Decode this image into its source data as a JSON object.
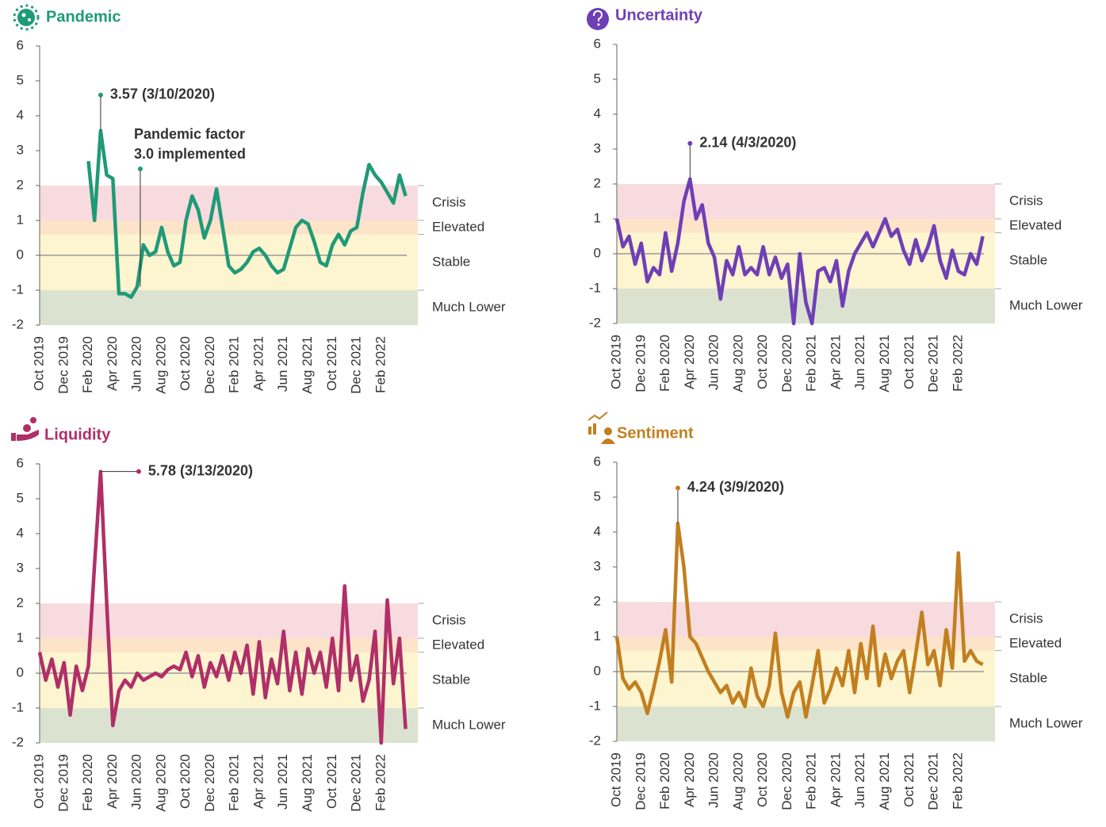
{
  "chart_data": [
    {
      "type": "line",
      "title": "Pandemic",
      "color": "#1f9a78",
      "categories": [
        "Oct 2019",
        null,
        null,
        null,
        "Dec 2019",
        null,
        null,
        null,
        "Feb 2020",
        null,
        null,
        null,
        "Apr 2020",
        null,
        null,
        null,
        "Jun 2020",
        null,
        null,
        null,
        "Aug 2020",
        null,
        null,
        null,
        "Oct 2020",
        null,
        null,
        null,
        "Dec 2020",
        null,
        null,
        null,
        "Feb 2021",
        null,
        null,
        null,
        "Apr 2021",
        null,
        null,
        null,
        "Jun 2021",
        null,
        null,
        null,
        "Aug 2021",
        null,
        null,
        null,
        "Oct 2021",
        null,
        null,
        null,
        "Dec 2021",
        null,
        null,
        null,
        "Feb 2022",
        null,
        null,
        null,
        null,
        null
      ],
      "values": [
        null,
        null,
        null,
        null,
        null,
        null,
        null,
        null,
        2.7,
        1.0,
        3.57,
        2.3,
        2.2,
        -1.1,
        -1.1,
        -1.2,
        -0.9,
        0.3,
        0.0,
        0.1,
        0.8,
        0.1,
        -0.3,
        -0.2,
        1.0,
        1.7,
        1.3,
        0.5,
        1.0,
        1.9,
        0.8,
        -0.3,
        -0.5,
        -0.4,
        -0.2,
        0.1,
        0.2,
        0.0,
        -0.3,
        -0.5,
        -0.4,
        0.2,
        0.8,
        1.0,
        0.9,
        0.4,
        -0.2,
        -0.3,
        0.3,
        0.6,
        0.3,
        0.7,
        0.8,
        1.8,
        2.6,
        2.3,
        2.1,
        1.8,
        1.5,
        2.3,
        1.7,
        null
      ],
      "ylim": [
        -2,
        6
      ],
      "yticks": [
        -2,
        -1,
        0,
        1,
        2,
        3,
        4,
        5,
        6
      ],
      "bands": [
        {
          "label": "Crisis",
          "from": 1,
          "to": 2,
          "color": "#f8dbdf"
        },
        {
          "label": "Elevated",
          "from": 0.6,
          "to": 1,
          "color": "#fde3c8"
        },
        {
          "label": "Stable",
          "from": -1,
          "to": 0.6,
          "color": "#fdf4d0"
        },
        {
          "label": "Much Lower",
          "from": -2,
          "to": -1,
          "color": "#dbe3d0"
        }
      ],
      "annotations": [
        {
          "text": "3.57 (3/10/2020)",
          "value": 3.57
        },
        {
          "lines": [
            "Pandemic factor",
            "3.0 implemented"
          ],
          "x": "Jun 2020"
        }
      ]
    },
    {
      "type": "line",
      "title": "Uncertainty",
      "color": "#6f3fb5",
      "categories": [
        "Oct 2019",
        null,
        null,
        null,
        "Dec 2019",
        null,
        null,
        null,
        "Feb 2020",
        null,
        null,
        null,
        "Apr 2020",
        null,
        null,
        null,
        "Jun 2020",
        null,
        null,
        null,
        "Aug 2020",
        null,
        null,
        null,
        "Oct 2020",
        null,
        null,
        null,
        "Dec 2020",
        null,
        null,
        null,
        "Feb 2021",
        null,
        null,
        null,
        "Apr 2021",
        null,
        null,
        null,
        "Jun 2021",
        null,
        null,
        null,
        "Aug 2021",
        null,
        null,
        null,
        "Oct 2021",
        null,
        null,
        null,
        "Dec 2021",
        null,
        null,
        null,
        "Feb 2022",
        null,
        null,
        null,
        null,
        null
      ],
      "values": [
        1.0,
        0.2,
        0.5,
        -0.3,
        0.3,
        -0.8,
        -0.4,
        -0.6,
        0.6,
        -0.5,
        0.3,
        1.5,
        2.14,
        1.0,
        1.4,
        0.3,
        -0.1,
        -1.3,
        -0.2,
        -0.6,
        0.2,
        -0.6,
        -0.4,
        -0.6,
        0.2,
        -0.6,
        -0.1,
        -0.7,
        -0.3,
        -2.0,
        0.0,
        -1.4,
        -2.0,
        -0.5,
        -0.4,
        -0.8,
        -0.2,
        -1.5,
        -0.5,
        0.0,
        0.3,
        0.6,
        0.2,
        0.6,
        1.0,
        0.5,
        0.7,
        0.1,
        -0.3,
        0.4,
        -0.2,
        0.2,
        0.8,
        -0.2,
        -0.7,
        0.1,
        -0.5,
        -0.6,
        0.0,
        -0.3,
        0.5,
        null
      ],
      "ylim": [
        -2,
        6
      ],
      "yticks": [
        -2,
        -1,
        0,
        1,
        2,
        3,
        4,
        5,
        6
      ],
      "bands": [
        {
          "label": "Crisis",
          "from": 1,
          "to": 2,
          "color": "#f8dbdf"
        },
        {
          "label": "Elevated",
          "from": 0.6,
          "to": 1,
          "color": "#fde3c8"
        },
        {
          "label": "Stable",
          "from": -1,
          "to": 0.6,
          "color": "#fdf4d0"
        },
        {
          "label": "Much Lower",
          "from": -2,
          "to": -1,
          "color": "#dbe3d0"
        }
      ],
      "annotations": [
        {
          "text": "2.14 (4/3/2020)",
          "value": 2.14
        }
      ]
    },
    {
      "type": "line",
      "title": "Liquidity",
      "color": "#b02f68",
      "categories": [
        "Oct 2019",
        null,
        null,
        null,
        "Dec 2019",
        null,
        null,
        null,
        "Feb 2020",
        null,
        null,
        null,
        "Apr 2020",
        null,
        null,
        null,
        "Jun 2020",
        null,
        null,
        null,
        "Aug 2020",
        null,
        null,
        null,
        "Oct 2020",
        null,
        null,
        null,
        "Dec 2020",
        null,
        null,
        null,
        "Feb 2021",
        null,
        null,
        null,
        "Apr 2021",
        null,
        null,
        null,
        "Jun 2021",
        null,
        null,
        null,
        "Aug 2021",
        null,
        null,
        null,
        "Oct 2021",
        null,
        null,
        null,
        "Dec 2021",
        null,
        null,
        null,
        "Feb 2022",
        null,
        null,
        null,
        null,
        null
      ],
      "values": [
        0.6,
        -0.2,
        0.4,
        -0.4,
        0.3,
        -1.2,
        0.2,
        -0.5,
        0.2,
        3.1,
        5.78,
        2.0,
        -1.5,
        -0.5,
        -0.2,
        -0.4,
        0.0,
        -0.2,
        -0.1,
        0.0,
        -0.1,
        0.1,
        0.2,
        0.1,
        0.6,
        -0.1,
        0.5,
        -0.4,
        0.3,
        -0.1,
        0.5,
        -0.2,
        0.6,
        0.0,
        0.8,
        -0.6,
        0.9,
        -0.7,
        0.4,
        -0.3,
        1.2,
        -0.5,
        0.6,
        -0.6,
        0.7,
        0.0,
        0.6,
        -0.4,
        1.0,
        -0.5,
        2.5,
        -0.2,
        0.5,
        -0.8,
        -0.2,
        1.2,
        -2.0,
        2.1,
        -0.3,
        1.0,
        -1.6,
        null
      ],
      "ylim": [
        -2,
        6
      ],
      "yticks": [
        -2,
        -1,
        0,
        1,
        2,
        3,
        4,
        5,
        6
      ],
      "bands": [
        {
          "label": "Crisis",
          "from": 1,
          "to": 2,
          "color": "#f8dbdf"
        },
        {
          "label": "Elevated",
          "from": 0.6,
          "to": 1,
          "color": "#fde3c8"
        },
        {
          "label": "Stable",
          "from": -1,
          "to": 0.6,
          "color": "#fdf4d0"
        },
        {
          "label": "Much Lower",
          "from": -2,
          "to": -1,
          "color": "#dbe3d0"
        }
      ],
      "annotations": [
        {
          "text": "5.78 (3/13/2020)",
          "value": 5.78
        }
      ]
    },
    {
      "type": "line",
      "title": "Sentiment",
      "color": "#c27f1f",
      "categories": [
        "Oct 2019",
        null,
        null,
        null,
        "Dec 2019",
        null,
        null,
        null,
        "Feb 2020",
        null,
        null,
        null,
        "Apr 2020",
        null,
        null,
        null,
        "Jun 2020",
        null,
        null,
        null,
        "Aug 2020",
        null,
        null,
        null,
        "Oct 2020",
        null,
        null,
        null,
        "Dec 2020",
        null,
        null,
        null,
        "Feb 2021",
        null,
        null,
        null,
        "Apr 2021",
        null,
        null,
        null,
        "Jun 2021",
        null,
        null,
        null,
        "Aug 2021",
        null,
        null,
        null,
        "Oct 2021",
        null,
        null,
        null,
        "Dec 2021",
        null,
        null,
        null,
        "Feb 2022",
        null,
        null,
        null,
        null,
        null
      ],
      "values": [
        1.0,
        -0.2,
        -0.5,
        -0.3,
        -0.6,
        -1.2,
        -0.5,
        0.3,
        1.2,
        -0.3,
        4.24,
        3.0,
        1.0,
        0.8,
        0.4,
        0.0,
        -0.3,
        -0.6,
        -0.4,
        -0.9,
        -0.6,
        -1.0,
        0.1,
        -0.7,
        -1.0,
        -0.4,
        1.1,
        -0.6,
        -1.3,
        -0.6,
        -0.3,
        -1.3,
        -0.4,
        0.6,
        -0.9,
        -0.5,
        0.1,
        -0.4,
        0.6,
        -0.6,
        0.8,
        -0.2,
        1.3,
        -0.4,
        0.5,
        -0.2,
        0.3,
        0.6,
        -0.6,
        0.5,
        1.7,
        0.2,
        0.6,
        -0.4,
        1.2,
        0.1,
        3.4,
        0.3,
        0.6,
        0.3,
        0.2,
        null
      ],
      "ylim": [
        -2,
        6
      ],
      "yticks": [
        -2,
        -1,
        0,
        1,
        2,
        3,
        4,
        5,
        6
      ],
      "bands": [
        {
          "label": "Crisis",
          "from": 1,
          "to": 2,
          "color": "#f8dbdf"
        },
        {
          "label": "Elevated",
          "from": 0.6,
          "to": 1,
          "color": "#fde3c8"
        },
        {
          "label": "Stable",
          "from": -1,
          "to": 0.6,
          "color": "#fdf4d0"
        },
        {
          "label": "Much Lower",
          "from": -2,
          "to": -1,
          "color": "#dbe3d0"
        }
      ],
      "annotations": [
        {
          "text": "4.24 (3/9/2020)",
          "value": 4.24
        }
      ]
    }
  ]
}
